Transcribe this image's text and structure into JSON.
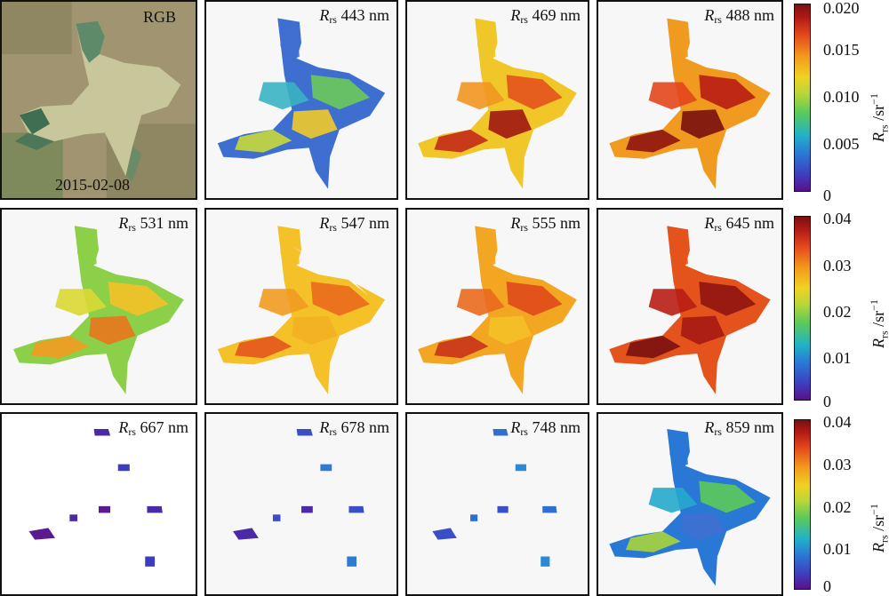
{
  "rows": [
    {
      "panels": [
        {
          "kind": "rgb",
          "label": "RGB",
          "date": "2015-02-08"
        },
        {
          "kind": "band",
          "symbol": "R",
          "subscript": "rs",
          "wavelength": "443 nm",
          "palette": [
            "#3e6fd0",
            "#38b2c2",
            "#6cc95a",
            "#c8d83a",
            "#f1c92a"
          ]
        },
        {
          "kind": "band",
          "symbol": "R",
          "subscript": "rs",
          "wavelength": "469 nm",
          "palette": [
            "#f0c629",
            "#f1961f",
            "#e4521c",
            "#c32a18",
            "#9f1712"
          ]
        },
        {
          "kind": "band",
          "symbol": "R",
          "subscript": "rs",
          "wavelength": "488 nm",
          "palette": [
            "#f09a20",
            "#e2461c",
            "#b81d15",
            "#8f1411",
            "#7a1010"
          ]
        }
      ],
      "colorbar": {
        "ticks": [
          "0.020",
          "0.015",
          "0.010",
          "0.005",
          "0"
        ],
        "unit_symbol": "R",
        "unit_subscript": "rs",
        "unit_rest": " /sr",
        "unit_sup": "−1"
      }
    },
    {
      "panels": [
        {
          "kind": "band",
          "symbol": "R",
          "subscript": "rs",
          "wavelength": "531 nm",
          "palette": [
            "#8ccf48",
            "#d9d833",
            "#f4c128",
            "#f29a21",
            "#e8761d"
          ]
        },
        {
          "kind": "band",
          "symbol": "R",
          "subscript": "rs",
          "wavelength": "547 nm",
          "palette": [
            "#f4c128",
            "#f29a21",
            "#ea6a1d",
            "#e4561c",
            "#f3b024"
          ]
        },
        {
          "kind": "band",
          "symbol": "R",
          "subscript": "rs",
          "wavelength": "555 nm",
          "palette": [
            "#f2a622",
            "#ea6a1d",
            "#df4a1b",
            "#c9331a",
            "#f4c128"
          ]
        },
        {
          "kind": "band",
          "symbol": "R",
          "subscript": "rs",
          "wavelength": "645 nm",
          "palette": [
            "#e4531c",
            "#b81d15",
            "#8f1411",
            "#7a1010",
            "#a61a14"
          ]
        }
      ],
      "colorbar": {
        "ticks": [
          "0.04",
          "0.03",
          "0.02",
          "0.01",
          "0"
        ],
        "unit_symbol": "R",
        "unit_subscript": "rs",
        "unit_rest": " /sr",
        "unit_sup": "−1"
      }
    },
    {
      "panels": [
        {
          "kind": "sparse",
          "symbol": "R",
          "subscript": "rs",
          "wavelength": "667 nm",
          "palette": [
            "#4b2aa6",
            "#5b1a8f",
            "#3b3cc0"
          ]
        },
        {
          "kind": "sparse",
          "symbol": "R",
          "subscript": "rs",
          "wavelength": "678 nm",
          "palette": [
            "#3a4ec8",
            "#4b2aa6",
            "#2e7ad6"
          ]
        },
        {
          "kind": "sparse",
          "symbol": "R",
          "subscript": "rs",
          "wavelength": "748 nm",
          "palette": [
            "#2e6fd2",
            "#3a4ec8",
            "#2a8ad8"
          ]
        },
        {
          "kind": "band",
          "symbol": "R",
          "subscript": "rs",
          "wavelength": "859 nm",
          "palette": [
            "#2a78d6",
            "#26a8cc",
            "#5cc95a",
            "#a9d43c",
            "#3e6fd0"
          ]
        }
      ],
      "colorbar": {
        "ticks": [
          "0.04",
          "0.03",
          "0.02",
          "0.01",
          "0"
        ],
        "unit_symbol": "R",
        "unit_subscript": "rs",
        "unit_rest": " /sr",
        "unit_sup": "−1"
      }
    }
  ]
}
